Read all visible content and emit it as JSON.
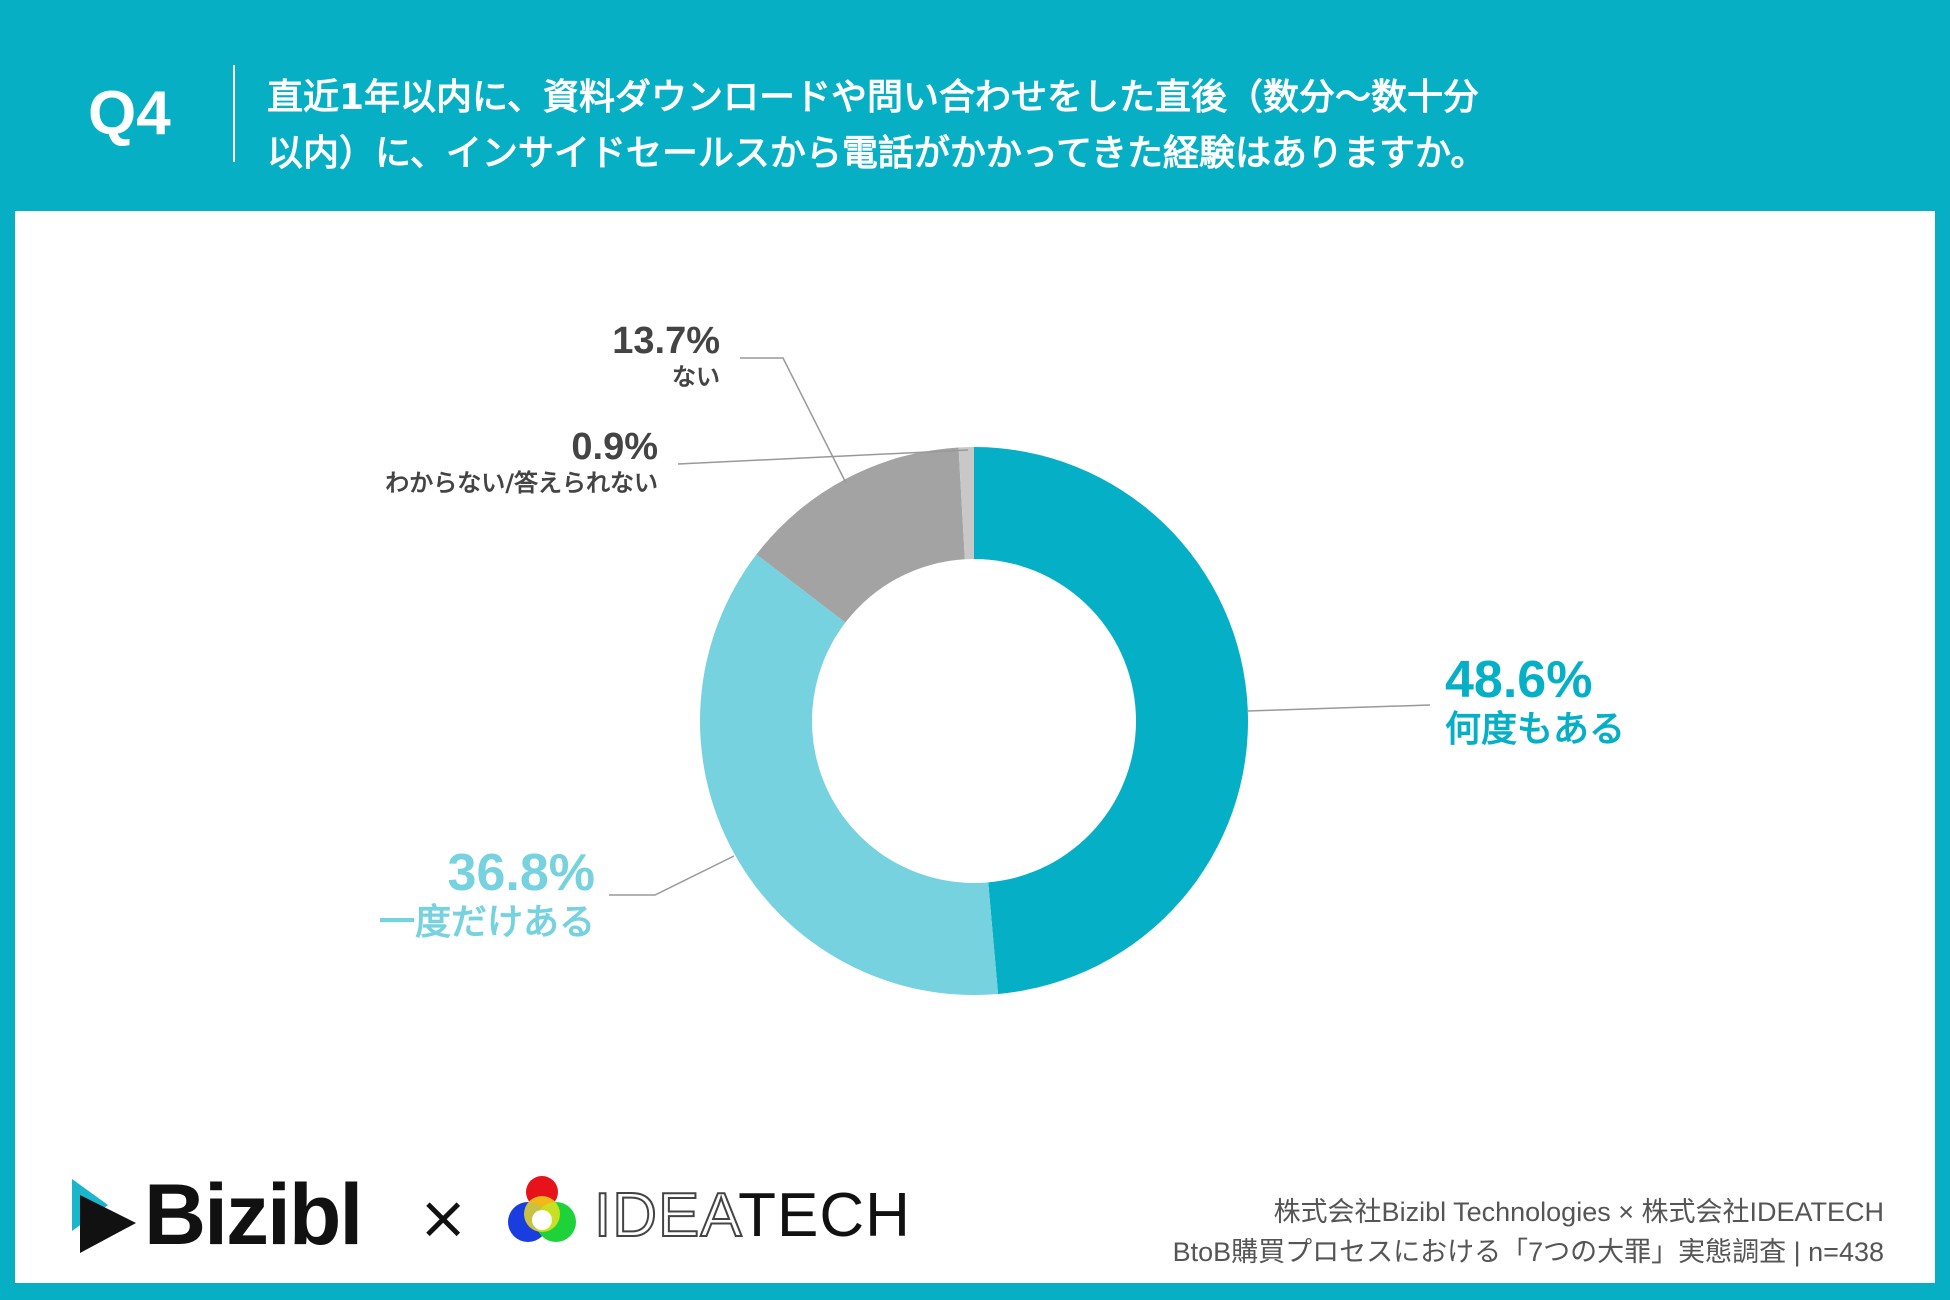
{
  "header": {
    "question_no": "Q4",
    "title_line1": "直近1年以内に、資料ダウンロードや問い合わせをした直後（数分〜数十分",
    "title_line2": "以内）に、インサイドセールスから電話がかかってきた経験はありますか。"
  },
  "chart_data": {
    "type": "pie",
    "donut": true,
    "title": "直近1年以内に、資料ダウンロードや問い合わせをした直後（数分〜数十分以内）に、インサイドセールスから電話がかかってきた経験はありますか。",
    "slices": [
      {
        "label": "何度もある",
        "value": 48.6,
        "value_label": "48.6%",
        "color": "#05afc6"
      },
      {
        "label": "一度だけある",
        "value": 36.8,
        "value_label": "36.8%",
        "color": "#75d2de"
      },
      {
        "label": "ない",
        "value": 13.7,
        "value_label": "13.7%",
        "color": "#a3a3a3"
      },
      {
        "label": "わからない/答えられない",
        "value": 0.9,
        "value_label": "0.9%",
        "color": "#c8c8c8"
      }
    ]
  },
  "footer": {
    "logo1": "Bizibl",
    "times": "×",
    "logo2_outline": "IDEA",
    "logo2_solid": "TECH",
    "credit_line1": "株式会社Bizibl Technologies × 株式会社IDEATECH",
    "credit_line2": "BtoB購買プロセスにおける「7つの大罪」実態調査 | n=438"
  }
}
